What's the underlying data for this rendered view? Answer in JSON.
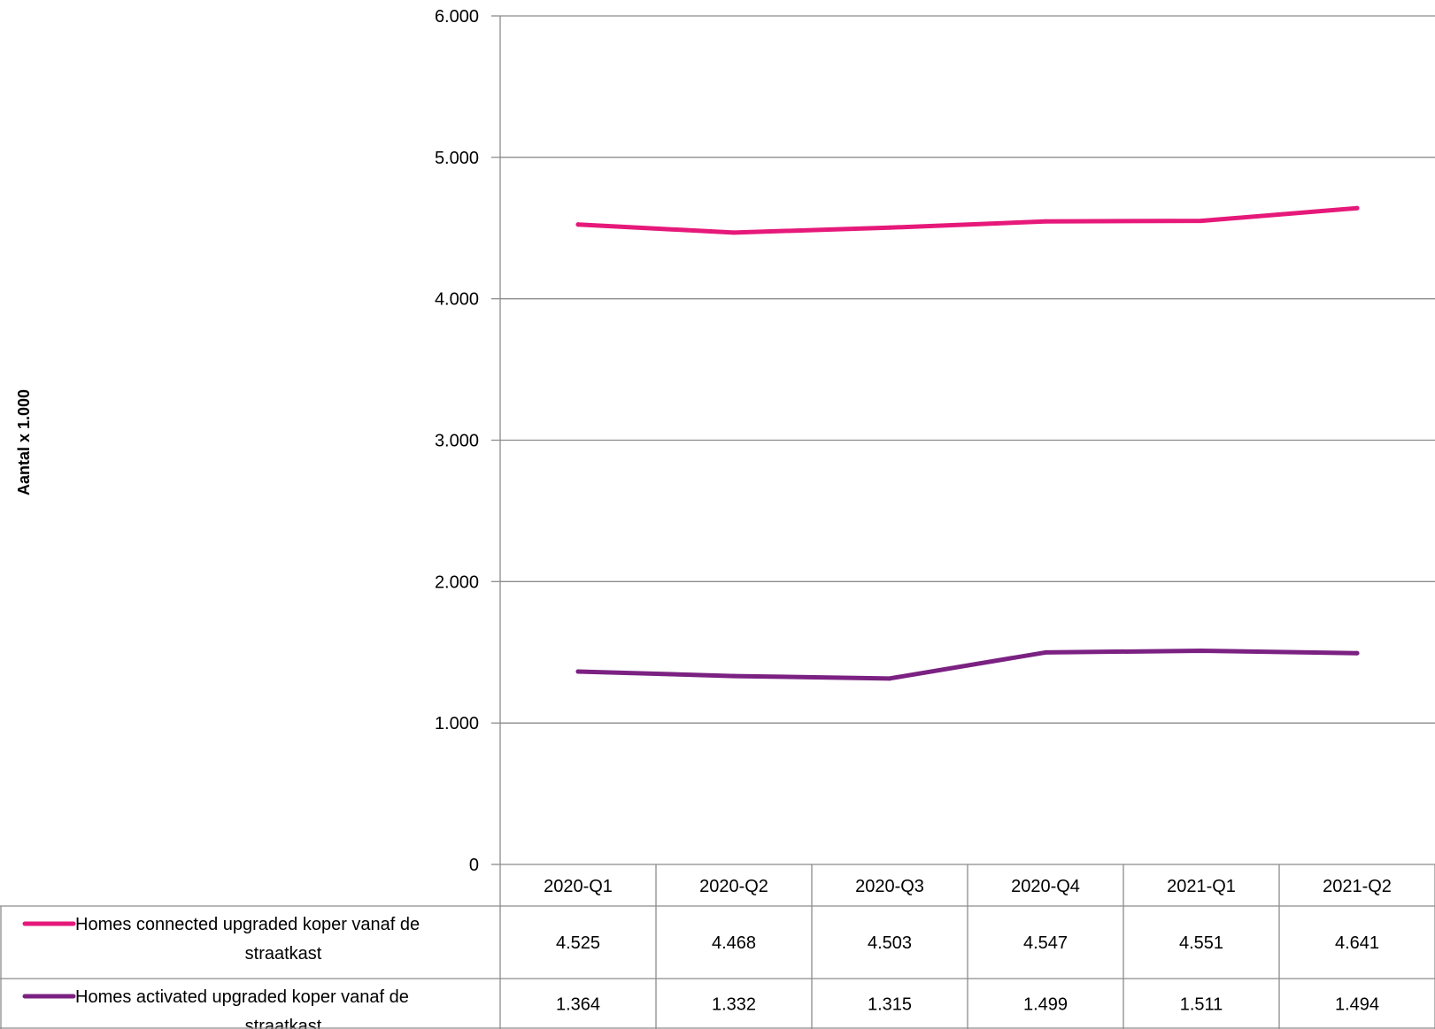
{
  "chart_data": {
    "type": "line",
    "ylabel": "Aantal x 1.000",
    "xlabel": "",
    "ylim": [
      0,
      6000
    ],
    "yticks": [
      {
        "value": 0,
        "label": "0"
      },
      {
        "value": 1000,
        "label": "1.000"
      },
      {
        "value": 2000,
        "label": "2.000"
      },
      {
        "value": 3000,
        "label": "3.000"
      },
      {
        "value": 4000,
        "label": "4.000"
      },
      {
        "value": 5000,
        "label": "5.000"
      },
      {
        "value": 6000,
        "label": "6.000"
      }
    ],
    "grid": true,
    "legend": "data-table",
    "categories": [
      "2020-Q1",
      "2020-Q2",
      "2020-Q3",
      "2020-Q4",
      "2021-Q1",
      "2021-Q2"
    ],
    "series": [
      {
        "name_lines": [
          "Homes connected upgraded koper vanaf de",
          "straatkast"
        ],
        "color": "#e6197a",
        "values": [
          4525,
          4468,
          4503,
          4547,
          4551,
          4641
        ],
        "value_labels": [
          "4.525",
          "4.468",
          "4.503",
          "4.547",
          "4.551",
          "4.641"
        ]
      },
      {
        "name_lines": [
          "Homes activated upgraded koper vanaf de",
          "straatkast"
        ],
        "color": "#7b2182",
        "values": [
          1364,
          1332,
          1315,
          1499,
          1511,
          1494
        ],
        "value_labels": [
          "1.364",
          "1.332",
          "1.315",
          "1.499",
          "1.511",
          "1.494"
        ]
      }
    ]
  }
}
